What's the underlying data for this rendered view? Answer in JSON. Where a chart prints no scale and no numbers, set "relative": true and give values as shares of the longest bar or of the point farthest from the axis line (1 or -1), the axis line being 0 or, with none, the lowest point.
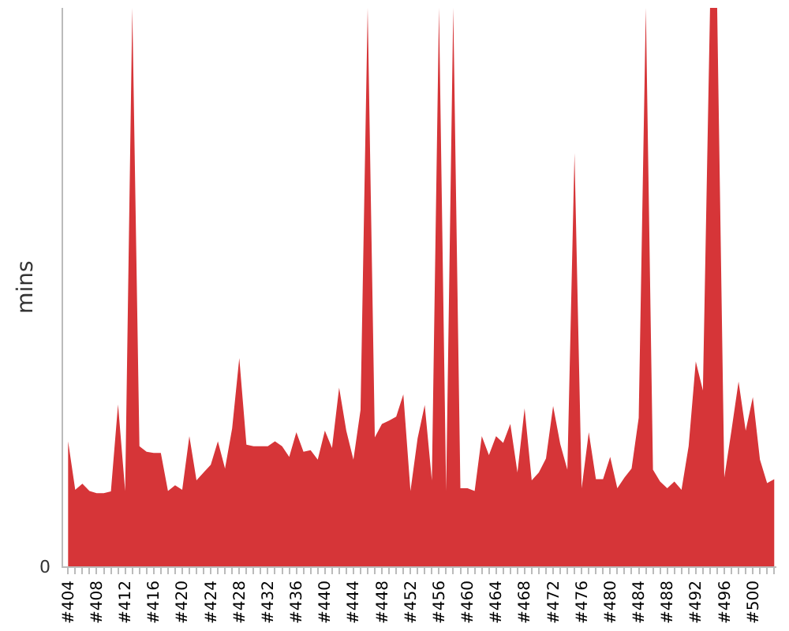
{
  "chart_data": {
    "type": "area",
    "relative": true,
    "ylabel": "mins",
    "color": "#d63538",
    "categories": [
      "#404",
      null,
      null,
      null,
      "#408",
      null,
      null,
      null,
      "#412",
      null,
      null,
      null,
      "#416",
      null,
      null,
      null,
      "#420",
      null,
      null,
      null,
      "#424",
      null,
      null,
      null,
      "#428",
      null,
      null,
      null,
      "#432",
      null,
      null,
      null,
      "#436",
      null,
      null,
      null,
      "#440",
      null,
      null,
      null,
      "#444",
      null,
      null,
      null,
      "#448",
      null,
      null,
      null,
      "#452",
      null,
      null,
      null,
      "#456",
      null,
      null,
      null,
      "#460",
      null,
      null,
      null,
      "#464",
      null,
      null,
      null,
      "#468",
      null,
      null,
      null,
      "#472",
      null,
      null,
      null,
      "#476",
      null,
      null,
      null,
      "#480",
      null,
      null,
      null,
      "#484",
      null,
      null,
      null,
      "#488",
      null,
      null,
      null,
      "#492",
      null,
      null,
      null,
      "#496",
      null,
      null,
      null,
      "#500",
      null,
      null,
      null
    ],
    "values": [
      0.224,
      0.137,
      0.148,
      0.135,
      0.131,
      0.131,
      0.134,
      0.29,
      0.135,
      1,
      0.215,
      0.205,
      0.203,
      0.203,
      0.135,
      0.145,
      0.137,
      0.233,
      0.154,
      0.168,
      0.182,
      0.224,
      0.175,
      0.247,
      0.373,
      0.218,
      0.215,
      0.215,
      0.215,
      0.224,
      0.215,
      0.196,
      0.24,
      0.205,
      0.208,
      0.191,
      0.243,
      0.212,
      0.32,
      0.243,
      0.191,
      0.28,
      1,
      0.231,
      0.255,
      0.261,
      0.268,
      0.308,
      0.135,
      0.229,
      0.289,
      0.154,
      1,
      0.135,
      1,
      0.14,
      0.14,
      0.135,
      0.233,
      0.199,
      0.233,
      0.221,
      0.255,
      0.168,
      0.283,
      0.154,
      0.168,
      0.193,
      0.287,
      0.219,
      0.173,
      0.74,
      0.14,
      0.24,
      0.156,
      0.156,
      0.196,
      0.14,
      0.159,
      0.175,
      0.266,
      1,
      0.173,
      0.152,
      0.14,
      0.152,
      0.137,
      0.215,
      0.367,
      0.315,
      1,
      1,
      0.159,
      0.243,
      0.331,
      0.243,
      0.303,
      0.191,
      0.149,
      0.156
    ],
    "annotations": [
      "0"
    ]
  }
}
